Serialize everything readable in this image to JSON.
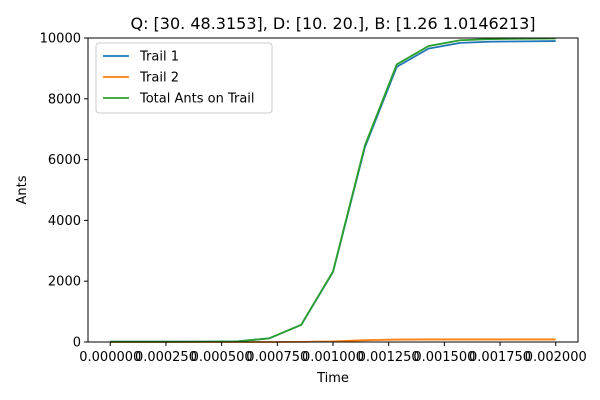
{
  "chart_data": {
    "type": "line",
    "title": "Q: [30.      48.3153], D: [10. 20.], B: [1.26       1.0146213]",
    "xlabel": "Time",
    "ylabel": "Ants",
    "xlim": [
      -0.0001,
      0.0021
    ],
    "ylim": [
      0,
      10000
    ],
    "x_ticks": [
      0.0,
      0.00025,
      0.0005,
      0.00075,
      0.001,
      0.00125,
      0.0015,
      0.00175,
      0.002
    ],
    "x_tick_labels": [
      "0.000000",
      "0.000250",
      "0.000500",
      "0.000750",
      "0.001000",
      "0.001250",
      "0.001500",
      "0.001750",
      "0.002000"
    ],
    "y_ticks": [
      0,
      2000,
      4000,
      6000,
      8000,
      10000
    ],
    "y_tick_labels": [
      "0",
      "2000",
      "4000",
      "6000",
      "8000",
      "10000"
    ],
    "grid": false,
    "legend_position": "top-left",
    "x": [
      0.0,
      0.000143,
      0.000286,
      0.000429,
      0.000571,
      0.000714,
      0.000857,
      0.001,
      0.001143,
      0.001286,
      0.001429,
      0.001571,
      0.001714,
      0.001857,
      0.002
    ],
    "series": [
      {
        "name": "Trail 1",
        "color": "#1f77b4",
        "values": [
          10,
          10,
          10,
          12,
          20,
          120,
          560,
          2300,
          6400,
          9050,
          9650,
          9840,
          9880,
          9890,
          9900
        ]
      },
      {
        "name": "Trail 2",
        "color": "#ff7f0e",
        "values": [
          0,
          0,
          0,
          0,
          0,
          0,
          5,
          20,
          60,
          80,
          85,
          85,
          85,
          85,
          85
        ]
      },
      {
        "name": "Total Ants on Trail",
        "color": "#2ca02c",
        "values": [
          10,
          10,
          10,
          12,
          20,
          120,
          565,
          2320,
          6460,
          9130,
          9735,
          9925,
          9965,
          9975,
          9985
        ]
      }
    ]
  }
}
